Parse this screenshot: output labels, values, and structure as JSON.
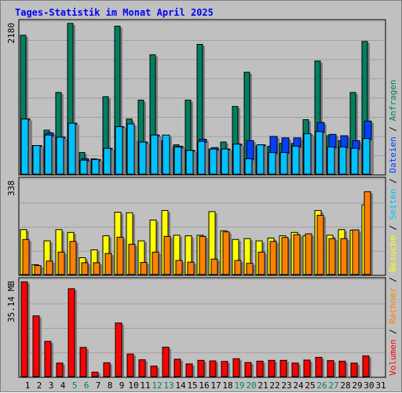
{
  "title": "Tages-Statistik im Monat April 2025",
  "legend_right_top": [
    {
      "text": "Anfragen",
      "color": "#008060"
    },
    {
      "text": " / ",
      "color": "#000000"
    },
    {
      "text": "Dateien",
      "color": "#0040ff"
    },
    {
      "text": " / ",
      "color": "#000000"
    },
    {
      "text": "Seiten",
      "color": "#00c0ff"
    },
    {
      "text": " / ",
      "color": "#000000"
    },
    {
      "text": "Besuche",
      "color": "#ffff00"
    },
    {
      "text": " / ",
      "color": "#000000"
    },
    {
      "text": "Rechner",
      "color": "#ff8000"
    },
    {
      "text": " / ",
      "color": "#000000"
    },
    {
      "text": "Volumen",
      "color": "#ff0000"
    }
  ],
  "chart_data": [
    {
      "type": "bar",
      "panel": "top",
      "ylabel": "2180",
      "ymax": 2180,
      "categories": [
        "1",
        "2",
        "3",
        "4",
        "5",
        "6",
        "7",
        "8",
        "9",
        "10",
        "11",
        "12",
        "13",
        "14",
        "15",
        "16",
        "17",
        "18",
        "19",
        "20",
        "21",
        "22",
        "23",
        "24",
        "25",
        "26",
        "27",
        "28",
        "29",
        "30"
      ],
      "weekend_days": [
        "5",
        "6",
        "12",
        "13",
        "19",
        "20",
        "26",
        "27"
      ],
      "series": [
        {
          "name": "Anfragen",
          "color": "#008060",
          "values": [
            1990,
            410,
            630,
            1170,
            2160,
            310,
            220,
            1110,
            2120,
            790,
            1060,
            1710,
            480,
            420,
            1060,
            1860,
            360,
            460,
            970,
            1460,
            400,
            400,
            440,
            440,
            780,
            1620,
            550,
            480,
            1170,
            1900
          ]
        },
        {
          "name": "Dateien",
          "color": "#0040ff",
          "values": [
            790,
            410,
            590,
            530,
            730,
            220,
            210,
            370,
            680,
            500,
            460,
            560,
            420,
            400,
            340,
            500,
            380,
            360,
            430,
            480,
            420,
            540,
            520,
            520,
            560,
            740,
            570,
            550,
            480,
            760
          ]
        },
        {
          "name": "Seiten",
          "color": "#00c0ff",
          "values": [
            790,
            410,
            560,
            530,
            730,
            200,
            210,
            370,
            680,
            720,
            460,
            560,
            560,
            390,
            340,
            470,
            360,
            360,
            430,
            220,
            420,
            310,
            310,
            400,
            580,
            610,
            390,
            390,
            370,
            510
          ]
        }
      ]
    },
    {
      "type": "bar",
      "panel": "middle",
      "ylabel": "338",
      "ymax": 338,
      "categories": [
        "1",
        "2",
        "3",
        "4",
        "5",
        "6",
        "7",
        "8",
        "9",
        "10",
        "11",
        "12",
        "13",
        "14",
        "15",
        "16",
        "17",
        "18",
        "19",
        "20",
        "21",
        "22",
        "23",
        "24",
        "25",
        "26",
        "27",
        "28",
        "29",
        "30"
      ],
      "series": [
        {
          "name": "Besuche",
          "color": "#ffff00",
          "values": [
            160,
            35,
            120,
            160,
            150,
            60,
            88,
            138,
            222,
            220,
            120,
            194,
            228,
            140,
            138,
            140,
            224,
            156,
            125,
            128,
            120,
            130,
            138,
            150,
            138,
            228,
            140,
            160,
            158,
            248
          ]
        },
        {
          "name": "Rechner",
          "color": "#ff8000",
          "values": [
            125,
            32,
            48,
            80,
            118,
            42,
            42,
            75,
            133,
            108,
            43,
            80,
            136,
            50,
            44,
            136,
            55,
            152,
            50,
            40,
            80,
            118,
            132,
            142,
            145,
            211,
            128,
            128,
            159,
            295
          ]
        }
      ]
    },
    {
      "type": "bar",
      "panel": "bottom",
      "ylabel": "35.14 MB",
      "ymax": 35.14,
      "categories": [
        "1",
        "2",
        "3",
        "4",
        "5",
        "6",
        "7",
        "8",
        "9",
        "10",
        "11",
        "12",
        "13",
        "14",
        "15",
        "16",
        "17",
        "18",
        "19",
        "20",
        "21",
        "22",
        "23",
        "24",
        "25",
        "26",
        "27",
        "28",
        "29",
        "30"
      ],
      "series": [
        {
          "name": "Volumen",
          "color": "#ff0000",
          "values": [
            34.5,
            22.1,
            12.8,
            4.9,
            32.0,
            10.6,
            1.6,
            5.0,
            19.5,
            8.2,
            6.1,
            3.8,
            10.7,
            6.3,
            4.6,
            5.9,
            5.7,
            5.5,
            6.5,
            5.1,
            5.6,
            5.9,
            5.9,
            4.9,
            6.0,
            7.0,
            5.8,
            5.6,
            4.9,
            7.5
          ]
        }
      ]
    }
  ],
  "x_axis_days": [
    "1",
    "2",
    "3",
    "4",
    "5",
    "6",
    "7",
    "8",
    "9",
    "10",
    "11",
    "12",
    "13",
    "14",
    "15",
    "16",
    "17",
    "18",
    "19",
    "20",
    "21",
    "22",
    "23",
    "24",
    "25",
    "26",
    "27",
    "28",
    "29",
    "30",
    "31"
  ]
}
